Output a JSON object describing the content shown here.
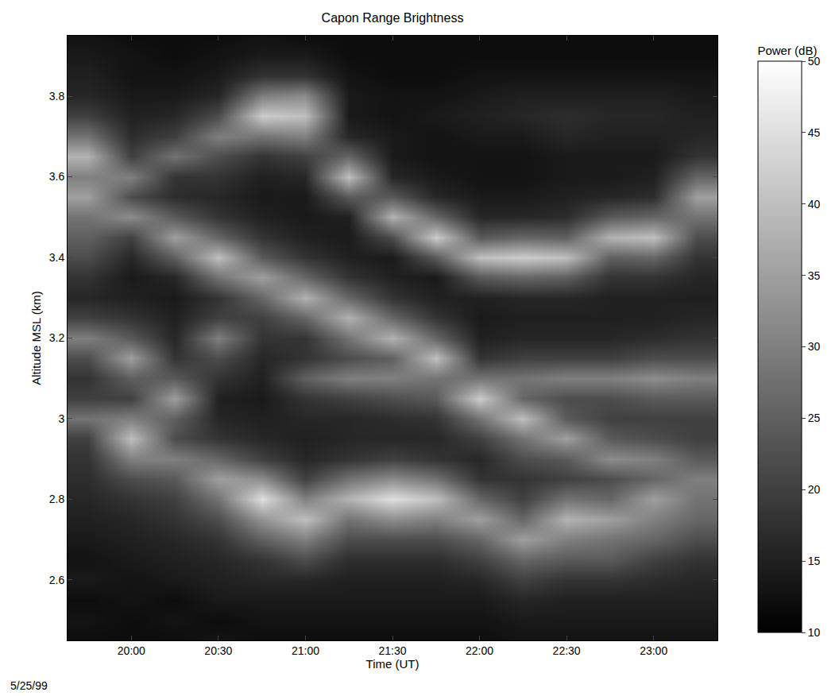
{
  "chart_data": {
    "type": "heatmap",
    "title": "Capon Range Brightness",
    "x_label": "Time (UT)",
    "y_label": "Altitude MSL (km)",
    "annotations": [
      "5/25/99"
    ],
    "color": "gray",
    "grid": false,
    "x": [
      "1999-05-25 19:45",
      "1999-05-25 20:00",
      "1999-05-25 20:15",
      "1999-05-25 20:30",
      "1999-05-25 20:45",
      "1999-05-25 21:00",
      "1999-05-25 21:15",
      "1999-05-25 21:30",
      "1999-05-25 21:45",
      "1999-05-25 22:00",
      "1999-05-25 22:15",
      "1999-05-25 22:30",
      "1999-05-25 22:45",
      "1999-05-25 23:00",
      "1999-05-25 23:15"
    ],
    "y": [
      2.45,
      2.5,
      2.55,
      2.6,
      2.65,
      2.7,
      2.75,
      2.8,
      2.85,
      2.9,
      2.95,
      3.0,
      3.05,
      3.1,
      3.15,
      3.2,
      3.25,
      3.3,
      3.35,
      3.4,
      3.45,
      3.5,
      3.55,
      3.6,
      3.65,
      3.7,
      3.75,
      3.8,
      3.85,
      3.9,
      3.95
    ],
    "z_by_x": [
      [
        12,
        13,
        12,
        14,
        13,
        14,
        15,
        16,
        17,
        18,
        20,
        28,
        20,
        18,
        22,
        30,
        20,
        16,
        18,
        22,
        25,
        28,
        35,
        30,
        38,
        28,
        20,
        16,
        15,
        14,
        13
      ],
      [
        12,
        12,
        13,
        13,
        14,
        15,
        16,
        18,
        22,
        30,
        40,
        30,
        20,
        25,
        35,
        24,
        18,
        15,
        14,
        16,
        20,
        32,
        22,
        30,
        20,
        17,
        15,
        14,
        13,
        13,
        12
      ],
      [
        12,
        13,
        12,
        14,
        15,
        16,
        18,
        20,
        24,
        30,
        22,
        25,
        35,
        24,
        18,
        16,
        15,
        14,
        16,
        25,
        35,
        24,
        17,
        18,
        28,
        20,
        16,
        14,
        13,
        12,
        12
      ],
      [
        13,
        12,
        14,
        15,
        16,
        18,
        22,
        28,
        35,
        26,
        18,
        16,
        15,
        18,
        22,
        30,
        20,
        18,
        28,
        40,
        26,
        18,
        16,
        18,
        22,
        30,
        22,
        16,
        14,
        13,
        12
      ],
      [
        12,
        13,
        14,
        16,
        18,
        25,
        33,
        45,
        32,
        20,
        16,
        15,
        14,
        15,
        16,
        18,
        20,
        26,
        35,
        24,
        18,
        15,
        14,
        15,
        18,
        28,
        42,
        30,
        18,
        14,
        13
      ],
      [
        12,
        13,
        14,
        16,
        22,
        30,
        40,
        30,
        20,
        16,
        15,
        16,
        18,
        25,
        18,
        18,
        26,
        38,
        26,
        18,
        15,
        14,
        14,
        16,
        20,
        30,
        40,
        32,
        18,
        14,
        12
      ],
      [
        12,
        13,
        14,
        15,
        17,
        22,
        28,
        38,
        28,
        18,
        16,
        16,
        20,
        30,
        22,
        28,
        38,
        26,
        18,
        15,
        14,
        15,
        24,
        40,
        26,
        16,
        14,
        14,
        13,
        12,
        12
      ],
      [
        12,
        13,
        14,
        15,
        17,
        22,
        32,
        45,
        32,
        20,
        16,
        17,
        22,
        30,
        25,
        38,
        26,
        18,
        15,
        14,
        22,
        38,
        24,
        16,
        14,
        14,
        13,
        13,
        12,
        12,
        12
      ],
      [
        12,
        13,
        14,
        15,
        17,
        22,
        30,
        40,
        28,
        18,
        16,
        18,
        24,
        28,
        40,
        26,
        18,
        15,
        14,
        24,
        42,
        26,
        16,
        14,
        13,
        13,
        14,
        13,
        12,
        12,
        12
      ],
      [
        12,
        13,
        14,
        16,
        20,
        26,
        35,
        26,
        18,
        16,
        20,
        28,
        42,
        28,
        18,
        15,
        14,
        15,
        24,
        40,
        24,
        16,
        14,
        13,
        13,
        14,
        15,
        14,
        13,
        12,
        12
      ],
      [
        13,
        14,
        16,
        20,
        26,
        35,
        26,
        20,
        18,
        22,
        28,
        40,
        26,
        28,
        20,
        16,
        15,
        16,
        26,
        42,
        26,
        16,
        14,
        13,
        13,
        14,
        16,
        15,
        13,
        12,
        12
      ],
      [
        13,
        14,
        15,
        18,
        24,
        30,
        38,
        28,
        20,
        24,
        35,
        24,
        22,
        30,
        20,
        16,
        15,
        16,
        25,
        40,
        25,
        17,
        15,
        14,
        14,
        16,
        17,
        15,
        13,
        12,
        12
      ],
      [
        13,
        14,
        15,
        18,
        24,
        28,
        35,
        26,
        22,
        32,
        24,
        20,
        22,
        30,
        20,
        16,
        15,
        15,
        18,
        25,
        38,
        24,
        16,
        14,
        14,
        15,
        16,
        15,
        13,
        12,
        12
      ],
      [
        13,
        14,
        15,
        17,
        20,
        26,
        30,
        35,
        26,
        30,
        22,
        20,
        24,
        32,
        22,
        17,
        15,
        15,
        18,
        26,
        40,
        26,
        17,
        15,
        14,
        15,
        16,
        15,
        13,
        12,
        12
      ],
      [
        13,
        14,
        15,
        16,
        18,
        22,
        26,
        28,
        30,
        24,
        20,
        20,
        24,
        30,
        22,
        18,
        16,
        15,
        16,
        18,
        22,
        28,
        35,
        26,
        18,
        16,
        15,
        14,
        13,
        12,
        12
      ]
    ],
    "xlim": [
      "1999-05-25 19:38",
      "1999-05-25 23:22"
    ],
    "xticks": [
      {
        "value": "1999-05-25 20:00",
        "label": "20:00"
      },
      {
        "value": "1999-05-25 20:30",
        "label": "20:30"
      },
      {
        "value": "1999-05-25 21:00",
        "label": "21:00"
      },
      {
        "value": "1999-05-25 21:30",
        "label": "21:30"
      },
      {
        "value": "1999-05-25 22:00",
        "label": "22:00"
      },
      {
        "value": "1999-05-25 22:30",
        "label": "22:30"
      },
      {
        "value": "1999-05-25 23:00",
        "label": "23:00"
      }
    ],
    "ylim": [
      2.45,
      3.95
    ],
    "yticks": [
      2.6,
      2.8,
      3,
      3.2,
      3.4,
      3.6,
      3.8
    ],
    "colorbar": {
      "title": "Power (dB)",
      "range": [
        10,
        50
      ],
      "ticks": [
        10,
        15,
        20,
        25,
        30,
        35,
        40,
        45,
        50
      ]
    }
  }
}
